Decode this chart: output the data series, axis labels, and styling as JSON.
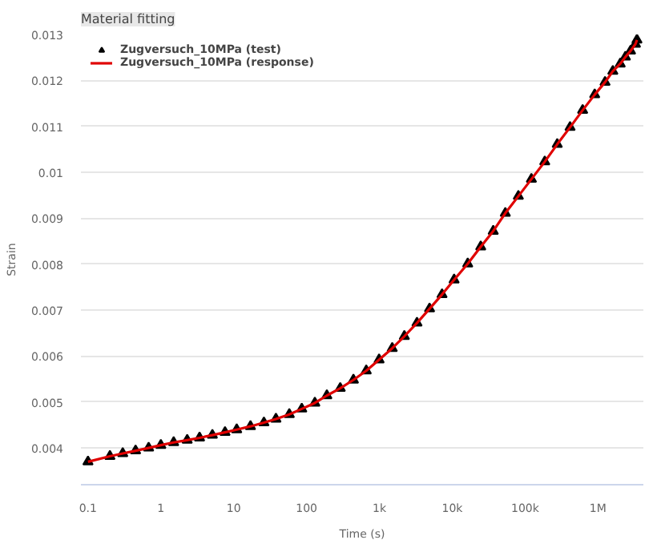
{
  "chart_data": {
    "type": "line",
    "title": "Material fitting",
    "xlabel": "Time (s)",
    "ylabel": "Strain",
    "log": "x",
    "grid": "y",
    "legend": "top left",
    "x": [
      0.1,
      0.2,
      0.3,
      0.45,
      0.68,
      1,
      1.5,
      2.3,
      3.4,
      5.1,
      7.6,
      11,
      17,
      26,
      38,
      58,
      86,
      130,
      190,
      290,
      440,
      660,
      990,
      1500,
      2200,
      3280,
      4880,
      7240,
      10600,
      16300,
      24600,
      36500,
      53500,
      80800,
      122000,
      186000,
      276000,
      414000,
      616000,
      902000,
      1250000,
      1600000,
      2020000,
      2380000,
      2800000,
      3270000,
      3430000
    ],
    "series": [
      {
        "name": "Zugversuch_10MPa (test)",
        "type": "scatter",
        "marker": "triangle",
        "color": "#000000",
        "values": [
          0.0037,
          0.00382,
          0.00388,
          0.00394,
          0.004,
          0.00406,
          0.00412,
          0.00417,
          0.00422,
          0.00428,
          0.00434,
          0.0044,
          0.00447,
          0.00455,
          0.00463,
          0.00473,
          0.00485,
          0.00498,
          0.00514,
          0.0053,
          0.00548,
          0.00568,
          0.00592,
          0.00617,
          0.00643,
          0.00672,
          0.00703,
          0.00734,
          0.00766,
          0.00801,
          0.00838,
          0.00872,
          0.00911,
          0.00948,
          0.00985,
          0.01023,
          0.01061,
          0.01098,
          0.01135,
          0.01169,
          0.01196,
          0.0122,
          0.01236,
          0.01251,
          0.01264,
          0.01279,
          0.01288
        ]
      },
      {
        "name": "Zugversuch_10MPa (response)",
        "line_style": "solid",
        "color": "#e00000",
        "values": [
          0.0037,
          0.00382,
          0.00388,
          0.00394,
          0.004,
          0.00406,
          0.00412,
          0.00417,
          0.00422,
          0.00428,
          0.00434,
          0.0044,
          0.00447,
          0.00455,
          0.00463,
          0.00473,
          0.00485,
          0.00498,
          0.00514,
          0.0053,
          0.00548,
          0.00568,
          0.00592,
          0.00617,
          0.00643,
          0.00672,
          0.00703,
          0.00734,
          0.00766,
          0.00801,
          0.00838,
          0.00872,
          0.00911,
          0.00948,
          0.00985,
          0.01023,
          0.01061,
          0.01098,
          0.01135,
          0.01169,
          0.01196,
          0.0122,
          0.01236,
          0.01251,
          0.01264,
          0.01279,
          0.01288
        ]
      }
    ],
    "xlim": [
      0.08,
      4200000
    ],
    "xticks": [
      0.1,
      1,
      10,
      100,
      {
        "value": 1000,
        "label": "1k"
      },
      {
        "value": 10000,
        "label": "10k"
      },
      {
        "value": 100000,
        "label": "100k"
      },
      {
        "value": 1000000,
        "label": "1M"
      }
    ],
    "ylim": [
      0.0032,
      0.013
    ],
    "yticks": [
      0.004,
      0.005,
      0.006,
      0.007,
      0.008,
      0.009,
      0.01,
      0.011,
      0.012,
      0.013
    ]
  }
}
